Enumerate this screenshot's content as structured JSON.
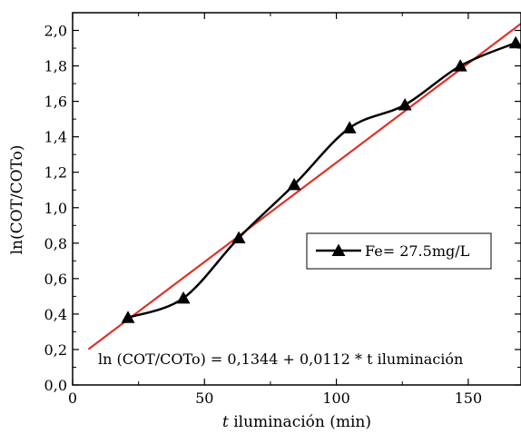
{
  "chart_data": {
    "type": "line",
    "xlabel_italic": "t",
    "xlabel_rest": " iluminación (min)",
    "ylabel": "ln(COT/COTo)",
    "xlim": [
      0,
      170
    ],
    "ylim": [
      0,
      2.1
    ],
    "x_ticks": [
      0,
      50,
      100,
      150
    ],
    "x_tick_labels": [
      "0",
      "50",
      "100",
      "150"
    ],
    "y_ticks": [
      0,
      0.2,
      0.4,
      0.6,
      0.8,
      1.0,
      1.2,
      1.4,
      1.6,
      1.8,
      2.0
    ],
    "y_tick_labels": [
      "0,0",
      "0,2",
      "0,4",
      "0,6",
      "0,8",
      "1,0",
      "1,2",
      "1,4",
      "1,6",
      "1,8",
      "2,0"
    ],
    "grid": false,
    "legend_position": "center-right",
    "series": [
      {
        "name": "Fe= 27.5mg/L",
        "marker": "triangle",
        "color": "#000000",
        "x": [
          21,
          42,
          63,
          84,
          105,
          126,
          147,
          168
        ],
        "y": [
          0.38,
          0.49,
          0.83,
          1.13,
          1.45,
          1.58,
          1.8,
          1.93
        ]
      }
    ],
    "fit_line": {
      "color": "#e0302a",
      "equation": "ln (COT/COTo) = 0,1344 + 0,0112 * t iluminación",
      "intercept": 0.1344,
      "slope": 0.0112,
      "x_range": [
        6,
        170
      ]
    }
  }
}
